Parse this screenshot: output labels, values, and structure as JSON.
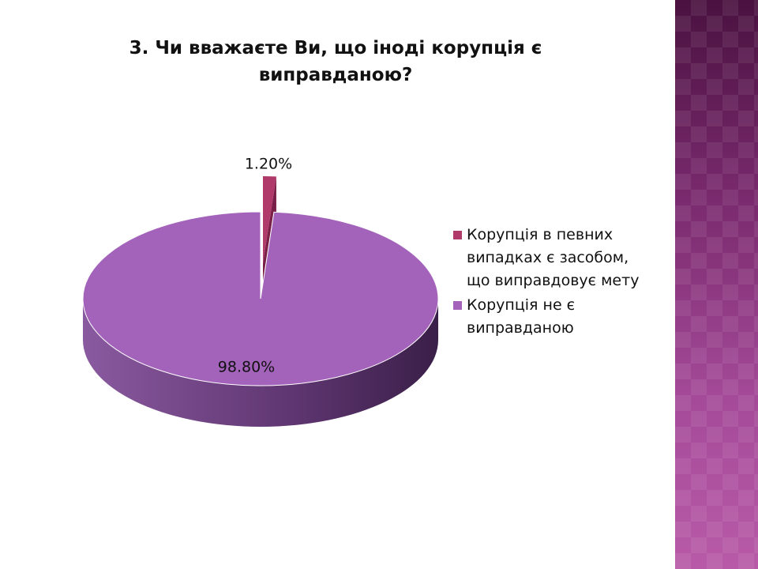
{
  "chart_data": {
    "type": "pie",
    "title": "3. Чи вважаєте Ви, що іноді корупція є виправданою?",
    "categories": [
      "Корупція в певних випадках є засобом, що виправдовує мету",
      "Корупція не є виправданою"
    ],
    "values": [
      1.2,
      98.8
    ],
    "value_labels": [
      "1.20%",
      "98.80%"
    ],
    "colors": [
      "#b03a6a",
      "#a463bb"
    ],
    "legend": "right"
  }
}
